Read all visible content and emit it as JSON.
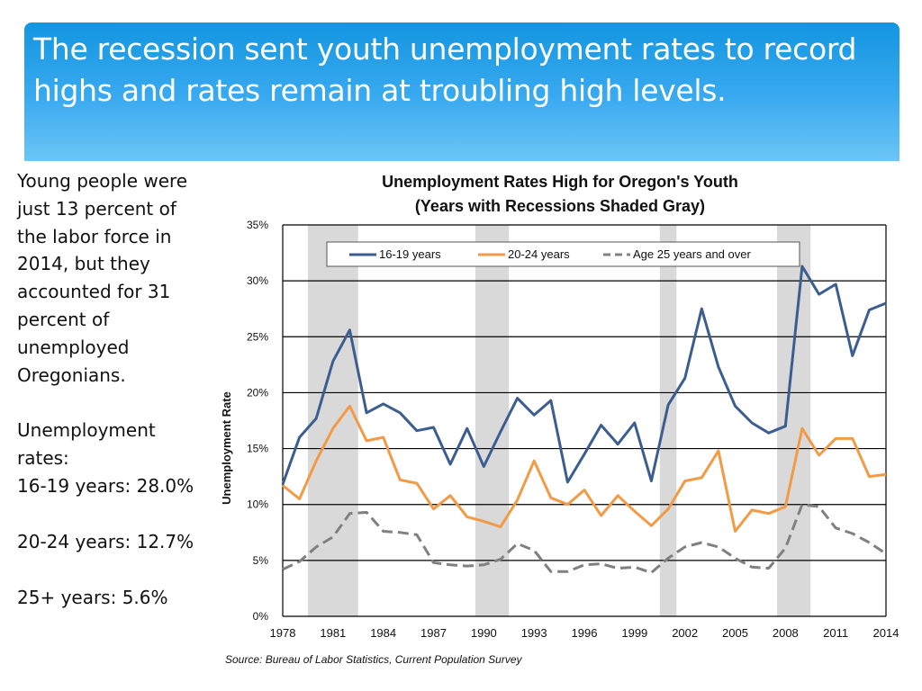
{
  "slide": {
    "title": "The recession sent youth unemployment rates to record highs and rates remain at troubling high levels.",
    "body": [
      "Young people were just 13 percent of the labor force in 2014, but they accounted for 31 percent of unemployed Oregonians."
    ],
    "rates_heading": "Unemployment rates:",
    "rates": [
      "16-19 years: 28.0%",
      "20-24 years: 12.7%",
      "25+ years: 5.6%"
    ],
    "source": "Source: Bureau of Labor Statistics, Current Population Survey"
  },
  "chart_data": {
    "type": "line",
    "title": "Unemployment Rates High for Oregon's Youth",
    "subtitle": "(Years with Recessions Shaded Gray)",
    "xlabel": "",
    "ylabel": "Unemployment Rate",
    "ylim": [
      0,
      35
    ],
    "xlim": [
      1978,
      2014
    ],
    "yticks": [
      "0%",
      "5%",
      "10%",
      "15%",
      "20%",
      "25%",
      "30%",
      "35%"
    ],
    "xticks": [
      "1978",
      "1981",
      "1984",
      "1987",
      "1990",
      "1993",
      "1996",
      "1999",
      "2002",
      "2005",
      "2008",
      "2011",
      "2014"
    ],
    "grid": "horizontal",
    "legend": "top",
    "recession_shading": [
      [
        1979.5,
        1982.5
      ],
      [
        1989.5,
        1991.5
      ],
      [
        2000.5,
        2001.5
      ],
      [
        2007.5,
        2009.5
      ]
    ],
    "x": [
      1978,
      1979,
      1980,
      1981,
      1982,
      1983,
      1984,
      1985,
      1986,
      1987,
      1988,
      1989,
      1990,
      1991,
      1992,
      1993,
      1994,
      1995,
      1996,
      1997,
      1998,
      1999,
      2000,
      2001,
      2002,
      2003,
      2004,
      2005,
      2006,
      2007,
      2008,
      2009,
      2010,
      2011,
      2012,
      2013,
      2014
    ],
    "series": [
      {
        "name": "16-19 years",
        "color": "#3b5d8f",
        "dash": "solid",
        "values": [
          11.8,
          16.0,
          17.7,
          22.8,
          25.6,
          18.2,
          19.0,
          18.2,
          16.6,
          16.9,
          13.6,
          16.8,
          13.4,
          16.5,
          19.5,
          18.0,
          19.3,
          12.0,
          14.5,
          17.1,
          15.4,
          17.3,
          12.1,
          18.9,
          21.3,
          27.5,
          22.3,
          18.8,
          17.3,
          16.4,
          17.0,
          31.3,
          28.8,
          29.7,
          23.3,
          27.4,
          28.0
        ]
      },
      {
        "name": "20-24 years",
        "color": "#f29a45",
        "dash": "solid",
        "values": [
          11.7,
          10.5,
          13.9,
          16.8,
          18.8,
          15.7,
          16.0,
          12.2,
          11.9,
          9.6,
          10.8,
          8.9,
          8.5,
          8.0,
          10.4,
          13.9,
          10.6,
          10.0,
          11.3,
          9.0,
          10.8,
          9.4,
          8.1,
          9.6,
          12.1,
          12.4,
          14.8,
          7.6,
          9.5,
          9.2,
          9.8,
          16.8,
          14.4,
          15.9,
          15.9,
          12.5,
          12.7
        ]
      },
      {
        "name": "Age 25 years and over",
        "color": "#808080",
        "dash": "dashed",
        "values": [
          4.2,
          4.9,
          6.2,
          7.1,
          9.2,
          9.3,
          7.6,
          7.5,
          7.3,
          4.8,
          4.6,
          4.5,
          4.6,
          5.1,
          6.5,
          5.9,
          4.0,
          4.0,
          4.6,
          4.7,
          4.3,
          4.4,
          3.9,
          5.2,
          6.2,
          6.6,
          6.2,
          5.2,
          4.4,
          4.3,
          6.1,
          10.0,
          9.8,
          7.9,
          7.4,
          6.6,
          5.6
        ]
      }
    ]
  }
}
